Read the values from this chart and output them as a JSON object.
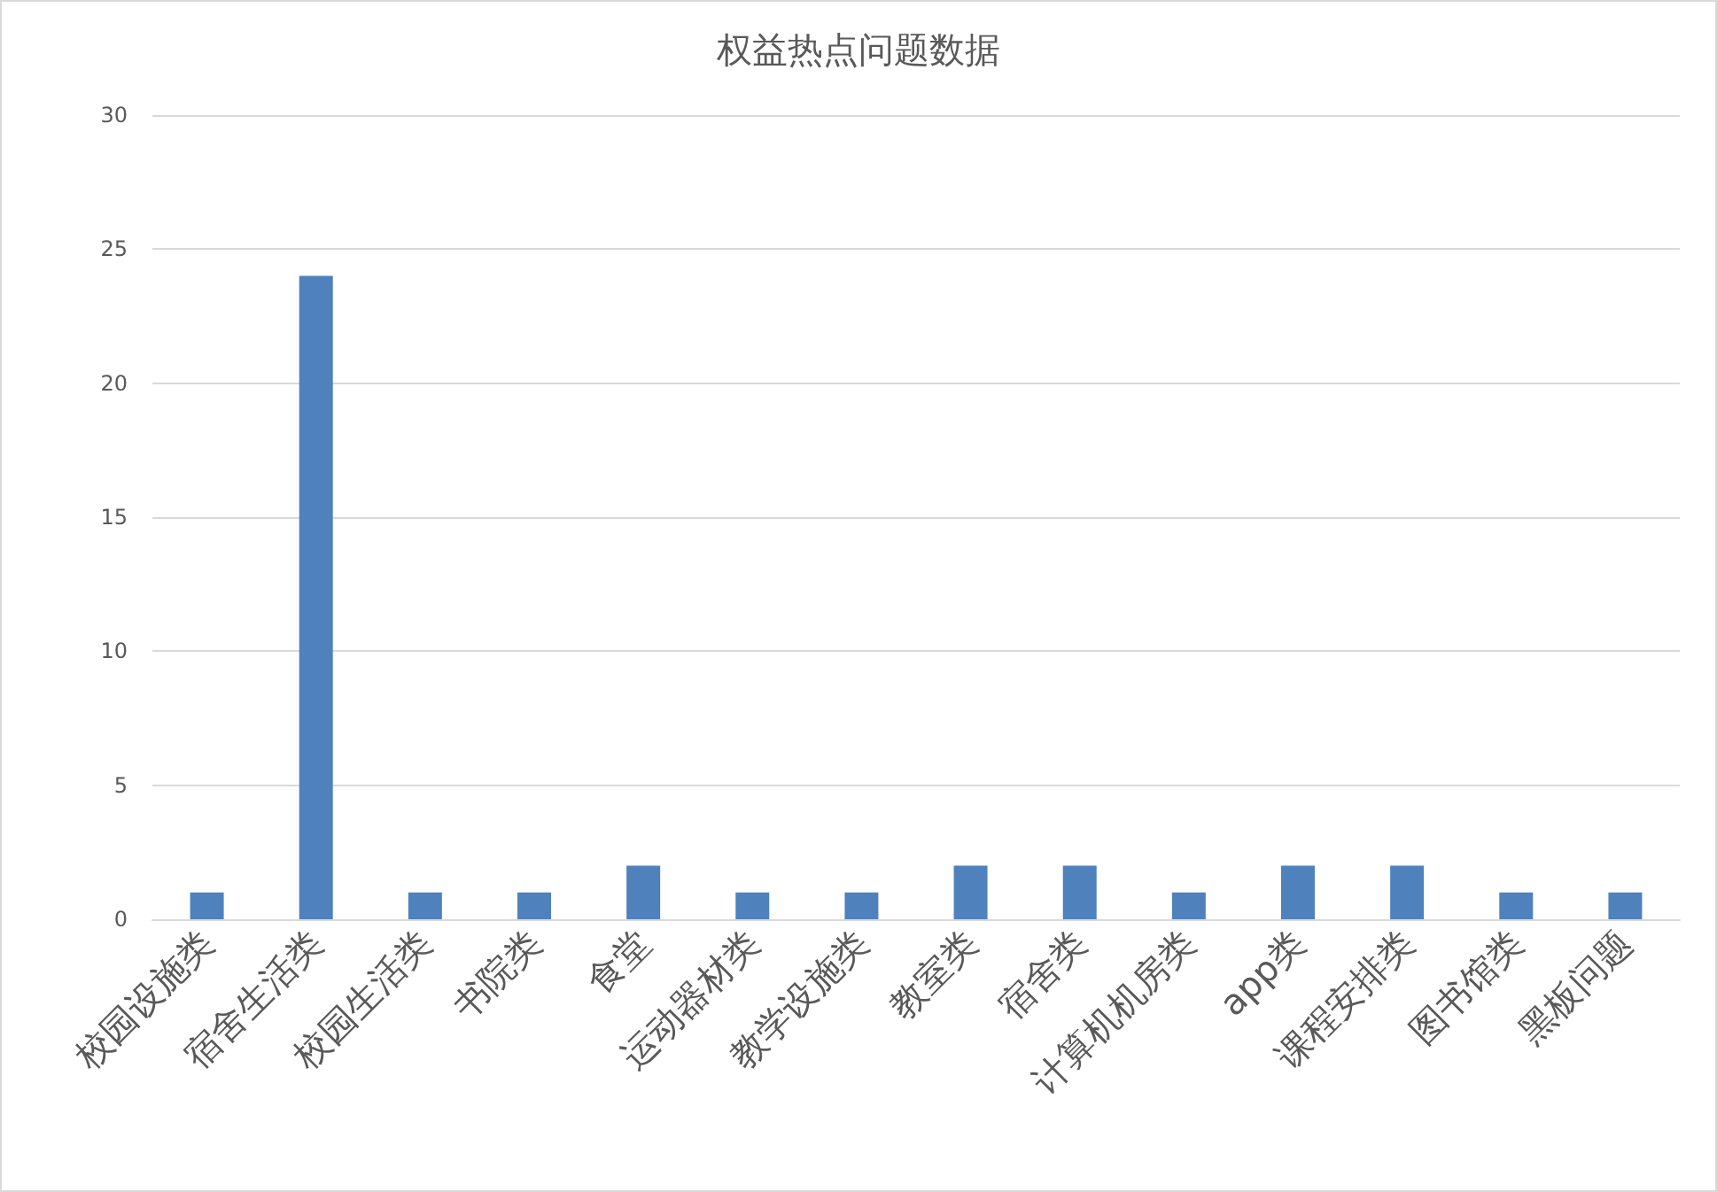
{
  "chart_data": {
    "type": "bar",
    "title": "权益热点问题数据",
    "categories": [
      "校园设施类",
      "宿舍生活类",
      "校园生活类",
      "书院类",
      "食堂",
      "运动器材类",
      "教学设施类",
      "教室类",
      "宿舍类",
      "计算机机房类",
      "app类",
      "课程安排类",
      "图书馆类",
      "黑板问题"
    ],
    "values": [
      1,
      24,
      1,
      1,
      2,
      1,
      1,
      2,
      2,
      1,
      2,
      2,
      1,
      1
    ],
    "color": "#4f81bd",
    "ylim": [
      0,
      30
    ],
    "yticks": [
      0,
      5,
      10,
      15,
      20,
      25,
      30
    ],
    "grid": "y"
  }
}
